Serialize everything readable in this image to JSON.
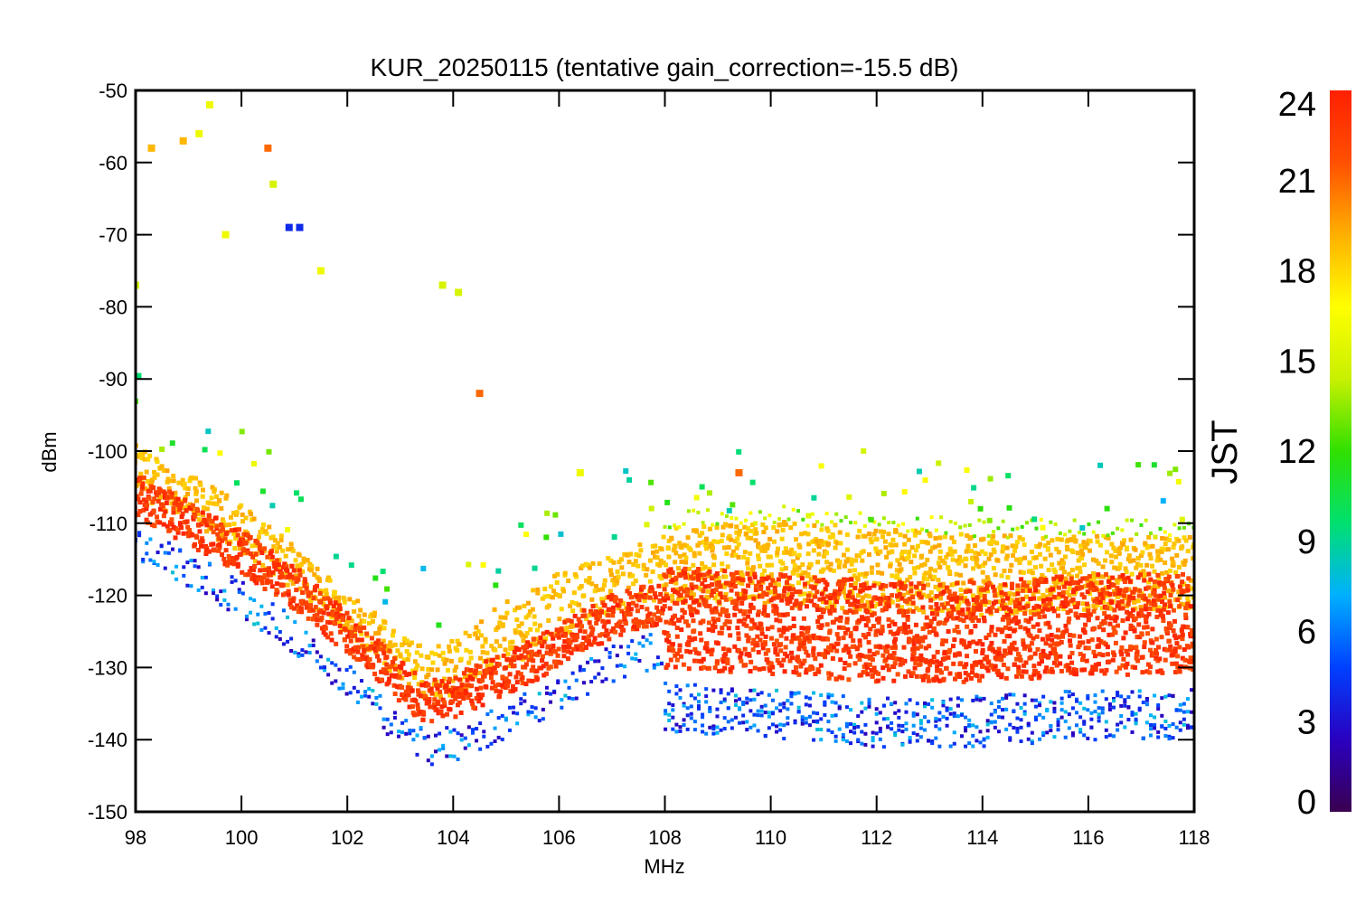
{
  "chart_data": {
    "type": "scatter",
    "title": "KUR_20250115 (tentative gain_correction=-15.5 dB)",
    "xlabel": "MHz",
    "ylabel": "dBm",
    "xlim": [
      98,
      118
    ],
    "ylim": [
      -150,
      -50
    ],
    "x_ticks": [
      "98",
      "100",
      "102",
      "104",
      "106",
      "108",
      "110",
      "112",
      "114",
      "116",
      "118"
    ],
    "y_ticks": [
      "-50",
      "-60",
      "-70",
      "-80",
      "-90",
      "-100",
      "-110",
      "-120",
      "-130",
      "-140",
      "-150"
    ],
    "grid": false,
    "colorbar": {
      "label": "JST",
      "range": [
        0,
        24
      ],
      "ticks": [
        "0",
        "3",
        "6",
        "9",
        "12",
        "15",
        "18",
        "21",
        "24"
      ],
      "colormap": "rainbow",
      "colors": [
        "#3a0050",
        "#2a00c0",
        "#0040ff",
        "#00b0ff",
        "#00e070",
        "#30e000",
        "#c8f000",
        "#ffff00",
        "#ffb000",
        "#ff5000",
        "#ff2000"
      ]
    },
    "noise_floor_profile": {
      "x": [
        98,
        99,
        100,
        101,
        102,
        103,
        103.5,
        104,
        105,
        106,
        107,
        107.9,
        108,
        110,
        112,
        114,
        116,
        118
      ],
      "floor_dbm": [
        -108,
        -112,
        -116,
        -121,
        -127,
        -134,
        -137,
        -136,
        -133,
        -129,
        -125,
        -123,
        -124,
        -125,
        -126,
        -126,
        -125,
        -125
      ],
      "daytime_level_dbm": [
        -100,
        -104,
        -108,
        -114,
        -120,
        -126,
        -128,
        -127,
        -122,
        -118,
        -115,
        -113,
        -112,
        -111,
        -112,
        -113,
        -113,
        -113
      ]
    },
    "station_peaks": [
      {
        "freq_mhz": 98.0,
        "peak_dbm": -77,
        "jst": 15
      },
      {
        "freq_mhz": 98.3,
        "peak_dbm": -58,
        "jst": 19
      },
      {
        "freq_mhz": 98.9,
        "peak_dbm": -57,
        "jst": 19
      },
      {
        "freq_mhz": 99.2,
        "peak_dbm": -56,
        "jst": 16
      },
      {
        "freq_mhz": 99.4,
        "peak_dbm": -52,
        "jst": 16
      },
      {
        "freq_mhz": 99.7,
        "peak_dbm": -70,
        "jst": 16
      },
      {
        "freq_mhz": 100.5,
        "peak_dbm": -58,
        "jst": 21
      },
      {
        "freq_mhz": 100.6,
        "peak_dbm": -63,
        "jst": 15
      },
      {
        "freq_mhz": 100.9,
        "peak_dbm": -69,
        "jst": 4
      },
      {
        "freq_mhz": 101.1,
        "peak_dbm": -69,
        "jst": 4
      },
      {
        "freq_mhz": 101.5,
        "peak_dbm": -75,
        "jst": 16
      },
      {
        "freq_mhz": 103.8,
        "peak_dbm": -77,
        "jst": 15
      },
      {
        "freq_mhz": 104.1,
        "peak_dbm": -78,
        "jst": 15
      },
      {
        "freq_mhz": 104.5,
        "peak_dbm": -92,
        "jst": 21
      },
      {
        "freq_mhz": 106.4,
        "peak_dbm": -103,
        "jst": 16
      },
      {
        "freq_mhz": 109.4,
        "peak_dbm": -103,
        "jst": 21
      }
    ]
  }
}
